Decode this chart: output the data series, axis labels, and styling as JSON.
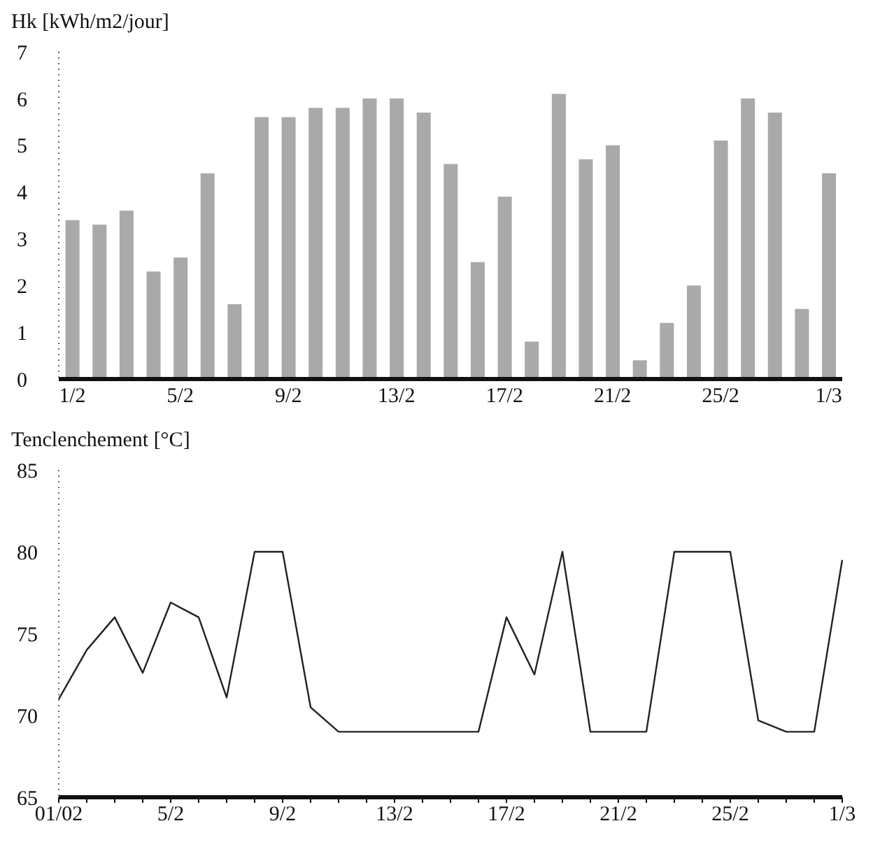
{
  "chart_data": [
    {
      "type": "bar",
      "ylabel": "Hk [kWh/m2/jour]",
      "categories": [
        "1/2",
        null,
        null,
        null,
        "5/2",
        null,
        null,
        null,
        "9/2",
        null,
        null,
        null,
        "13/2",
        null,
        null,
        null,
        "17/2",
        null,
        null,
        null,
        "21/2",
        null,
        null,
        null,
        "25/2",
        null,
        null,
        null,
        "1/3"
      ],
      "values": [
        3.4,
        3.3,
        3.6,
        2.3,
        2.6,
        4.4,
        1.6,
        5.6,
        5.6,
        5.8,
        5.8,
        6.0,
        6.0,
        5.7,
        4.6,
        2.5,
        3.9,
        0.8,
        6.1,
        4.7,
        5.0,
        0.4,
        1.2,
        2.0,
        5.1,
        6.0,
        5.7,
        1.5,
        4.4
      ],
      "color": "#a9a9a9",
      "ylim": [
        0,
        7
      ],
      "yticks": [
        0,
        1,
        2,
        3,
        4,
        5,
        6,
        7
      ],
      "grid": false,
      "legend": false
    },
    {
      "type": "line",
      "ylabel": "Tenclenchement [°C]",
      "categories": [
        "01/02",
        null,
        null,
        null,
        "5/2",
        null,
        null,
        null,
        "9/2",
        null,
        null,
        null,
        "13/2",
        null,
        null,
        null,
        "17/2",
        null,
        null,
        null,
        "21/2",
        null,
        null,
        null,
        "25/2",
        null,
        null,
        null,
        "1/3"
      ],
      "values": [
        71,
        74,
        76,
        72.6,
        76.9,
        76,
        71.1,
        80,
        80,
        70.5,
        69,
        69,
        69,
        69,
        69,
        69,
        76,
        72.5,
        80,
        69,
        69,
        69,
        80,
        80,
        80,
        69.7,
        69,
        69,
        79.5
      ],
      "color": "#222222",
      "ylim": [
        65,
        85
      ],
      "yticks": [
        65,
        70,
        75,
        80,
        85
      ],
      "grid": false,
      "legend": false,
      "marker": "none",
      "line_style": "solid"
    }
  ]
}
